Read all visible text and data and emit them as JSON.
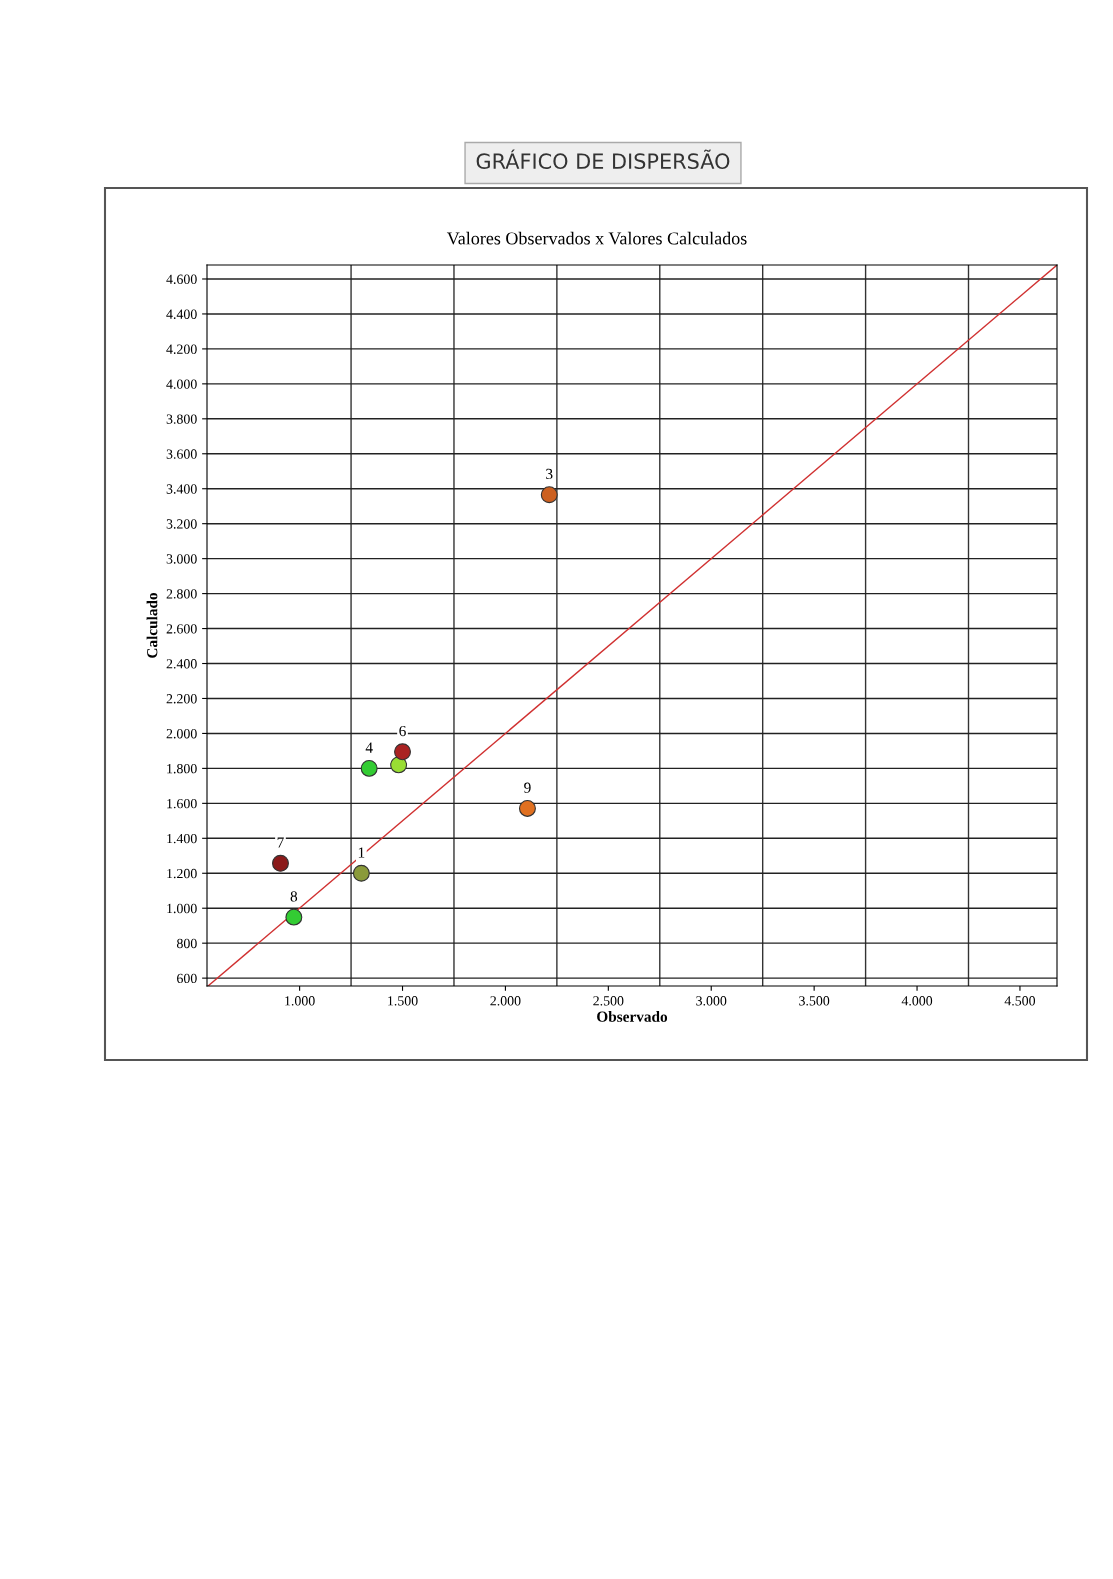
{
  "chart_data": {
    "type": "scatter",
    "title": "GRÁFICO DE DISPERSÃO",
    "subtitle": "Valores Observados x Valores Calculados",
    "xlabel": "Observado",
    "ylabel": "Calculado",
    "series": [
      {
        "marker": "circle",
        "x": [
          1300,
          2213,
          1338,
          1481,
          1500,
          907,
          972,
          2107
        ],
        "values": [
          1200,
          3366,
          1800,
          1820,
          1895,
          1257,
          949,
          1571
        ],
        "colors": [
          "#8a9a3a",
          "#cc6020",
          "#33cc33",
          "#99dd33",
          "#aa2222",
          "#8b1a1a",
          "#33cc33",
          "#e07020"
        ]
      },
      {
        "type": "line",
        "marker": "none",
        "x": [
          555,
          4680
        ],
        "values": [
          555,
          4680
        ],
        "color": "#d03030"
      }
    ],
    "annotations": [
      {
        "text": "1",
        "x": 1300,
        "y": 1200
      },
      {
        "text": "3",
        "x": 2213,
        "y": 3366
      },
      {
        "text": "4",
        "x": 1338,
        "y": 1800
      },
      {
        "text": "6",
        "x": 1500,
        "y": 1895
      },
      {
        "text": "7",
        "x": 907,
        "y": 1257
      },
      {
        "text": "8",
        "x": 972,
        "y": 949
      },
      {
        "text": "9",
        "x": 2107,
        "y": 1571
      }
    ],
    "xlim": [
      550,
      4680
    ],
    "ylim": [
      555,
      4680
    ],
    "xticks": [
      {
        "value": 1000,
        "label": "1.000"
      },
      {
        "value": 1500,
        "label": "1.500"
      },
      {
        "value": 2000,
        "label": "2.000"
      },
      {
        "value": 2500,
        "label": "2.500"
      },
      {
        "value": 3000,
        "label": "3.000"
      },
      {
        "value": 3500,
        "label": "3.500"
      },
      {
        "value": 4000,
        "label": "4.000"
      },
      {
        "value": 4500,
        "label": "4.500"
      }
    ],
    "yticks": [
      {
        "value": 600,
        "label": "600"
      },
      {
        "value": 800,
        "label": "800"
      },
      {
        "value": 1000,
        "label": "1.000"
      },
      {
        "value": 1200,
        "label": "1.200"
      },
      {
        "value": 1400,
        "label": "1.400"
      },
      {
        "value": 1600,
        "label": "1.600"
      },
      {
        "value": 1800,
        "label": "1.800"
      },
      {
        "value": 2000,
        "label": "2.000"
      },
      {
        "value": 2200,
        "label": "2.200"
      },
      {
        "value": 2400,
        "label": "2.400"
      },
      {
        "value": 2600,
        "label": "2.600"
      },
      {
        "value": 2800,
        "label": "2.800"
      },
      {
        "value": 3000,
        "label": "3.000"
      },
      {
        "value": 3200,
        "label": "3.200"
      },
      {
        "value": 3400,
        "label": "3.400"
      },
      {
        "value": 3600,
        "label": "3.600"
      },
      {
        "value": 3800,
        "label": "3.800"
      },
      {
        "value": 4000,
        "label": "4.000"
      },
      {
        "value": 4200,
        "label": "4.200"
      },
      {
        "value": 4400,
        "label": "4.400"
      },
      {
        "value": 4600,
        "label": "4.600"
      }
    ],
    "grid": "y",
    "ref_lines": [
      {
        "axis": "x",
        "value": 1250,
        "color": "#333333"
      },
      {
        "axis": "x",
        "value": 1750,
        "color": "#333333"
      },
      {
        "axis": "x",
        "value": 2250,
        "color": "#333333"
      },
      {
        "axis": "x",
        "value": 2750,
        "color": "#333333"
      },
      {
        "axis": "x",
        "value": 3250,
        "color": "#333333"
      },
      {
        "axis": "x",
        "value": 3750,
        "color": "#333333"
      },
      {
        "axis": "x",
        "value": 4250,
        "color": "#333333"
      }
    ]
  }
}
